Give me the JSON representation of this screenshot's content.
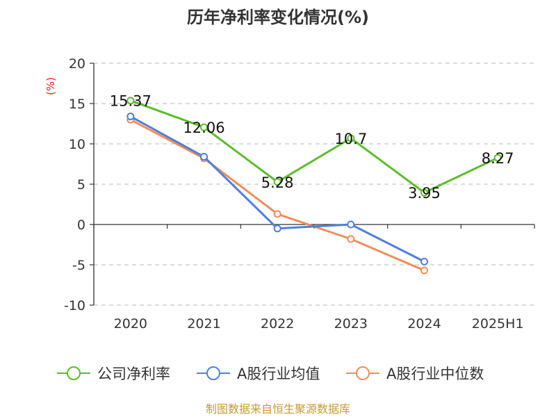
{
  "chart_data": {
    "type": "line",
    "title": "历年净利率变化情况(%)",
    "ylabel": "(%)",
    "xlabel": "",
    "categories": [
      "2020",
      "2021",
      "2022",
      "2023",
      "2024",
      "2025H1"
    ],
    "ylim": [
      -10,
      20
    ],
    "yticks": [
      20,
      15,
      10,
      5,
      0,
      -5,
      -10
    ],
    "grid": true,
    "legend_position": "bottom",
    "series": [
      {
        "name": "公司净利率",
        "color": "#5bbd2b",
        "values": [
          15.37,
          12.06,
          5.28,
          10.7,
          3.95,
          8.27
        ],
        "labels": [
          "15.37",
          "12.06",
          "5.28",
          "10.7",
          "3.95",
          "8.27"
        ]
      },
      {
        "name": "A股行业均值",
        "color": "#4f7fdc",
        "values": [
          13.4,
          8.4,
          -0.5,
          0.0,
          -4.6,
          null
        ],
        "labels": null
      },
      {
        "name": "A股行业中位数",
        "color": "#f28c5a",
        "values": [
          13.0,
          8.2,
          1.3,
          -1.8,
          -5.7,
          null
        ],
        "labels": null
      }
    ]
  },
  "source": "制图数据来自恒生聚源数据库"
}
